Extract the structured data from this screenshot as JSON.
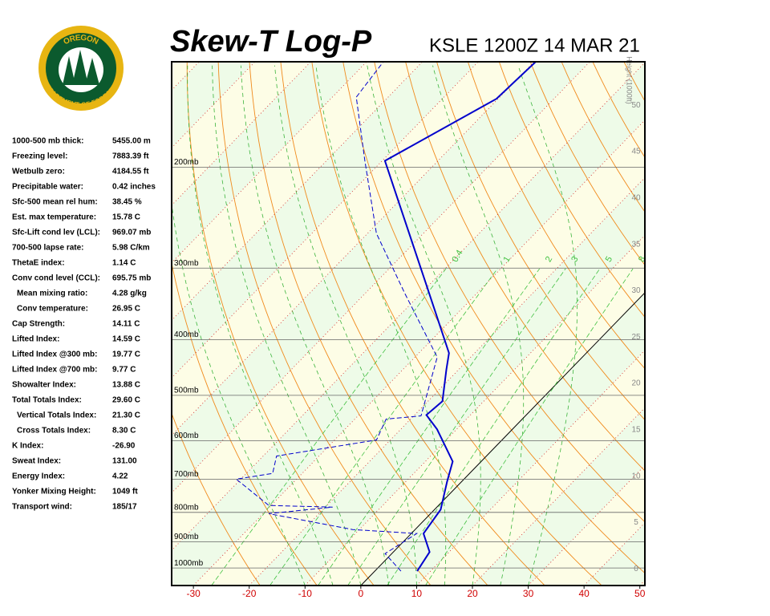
{
  "header": {
    "title": "Skew-T Log-P",
    "subtitle": "KSLE 1200Z 14 MAR 21"
  },
  "logo": {
    "top": "OREGON",
    "bottom": "DEPARTMENT OF FORESTRY"
  },
  "indices": [
    {
      "label": "1000-500 mb thick:",
      "value": "5455.00 m"
    },
    {
      "label": "Freezing level:",
      "value": "7883.39 ft"
    },
    {
      "label": "Wetbulb zero:",
      "value": "4184.55 ft"
    },
    {
      "label": "Precipitable water:",
      "value": "0.42 inches"
    },
    {
      "label": "Sfc-500 mean rel hum:",
      "value": "38.45 %"
    },
    {
      "label": "Est. max temperature:",
      "value": "15.78 C"
    },
    {
      "label": "Sfc-Lift cond lev (LCL):",
      "value": "969.07 mb"
    },
    {
      "label": "700-500 lapse rate:",
      "value": "5.98 C/km"
    },
    {
      "label": "ThetaE index:",
      "value": "1.14 C"
    },
    {
      "label": "Conv cond level (CCL):",
      "value": "695.75 mb"
    },
    {
      "label": "Mean mixing ratio:",
      "value": "4.28 g/kg",
      "indent": true
    },
    {
      "label": "Conv temperature:",
      "value": "26.95 C",
      "indent": true
    },
    {
      "label": "Cap Strength:",
      "value": "14.11 C"
    },
    {
      "label": "Lifted Index:",
      "value": "14.59 C"
    },
    {
      "label": "Lifted Index @300 mb:",
      "value": "19.77 C"
    },
    {
      "label": "Lifted Index @700 mb:",
      "value": "9.77 C"
    },
    {
      "label": "Showalter Index:",
      "value": "13.88 C"
    },
    {
      "label": "Total Totals Index:",
      "value": "29.60 C"
    },
    {
      "label": "Vertical Totals Index:",
      "value": "21.30 C",
      "indent": true
    },
    {
      "label": "Cross Totals Index:",
      "value": "8.30 C",
      "indent": true
    },
    {
      "label": "K Index:",
      "value": "-26.90"
    },
    {
      "label": "Sweat Index:",
      "value": "131.00"
    },
    {
      "label": "Energy Index:",
      "value": "4.22"
    },
    {
      "label": "Yonker Mixing Height:",
      "value": "1049 ft"
    },
    {
      "label": "Transport wind:",
      "value": "185/17"
    }
  ],
  "chart_data": {
    "type": "skew-t",
    "xlim": [
      -33.9,
      50.9
    ],
    "xticks": [
      -30,
      -20,
      -10,
      0,
      10,
      20,
      30,
      40,
      50
    ],
    "ylim": [
      1073,
      131
    ],
    "log_y": true,
    "yticks": [
      {
        "value": 1000,
        "label": "1000mb"
      },
      {
        "value": 900,
        "label": "900mb"
      },
      {
        "value": 800,
        "label": "800mb"
      },
      {
        "value": 700,
        "label": "700mb"
      },
      {
        "value": 600,
        "label": "600mb"
      },
      {
        "value": 500,
        "label": "500mb"
      },
      {
        "value": 400,
        "label": "400mb"
      },
      {
        "value": 300,
        "label": "300mb"
      },
      {
        "value": 200,
        "label": "200mb"
      }
    ],
    "height_label": "Height (1000ft)",
    "height_lim": [
      -1.8,
      54.7
    ],
    "height_ticks": [
      0,
      5,
      10,
      15,
      20,
      25,
      30,
      35,
      40,
      45,
      50
    ],
    "mixing_ratio_ticks": [
      0.4,
      1,
      2,
      3,
      5,
      8
    ],
    "temperature": {
      "color": "#0000cc",
      "pressure": [
        1013,
        938,
        871,
        791,
        707,
        652,
        573,
        541,
        512,
        451,
        422,
        316,
        195,
        152,
        131
      ],
      "values": [
        7.6,
        6.5,
        2.2,
        1.1,
        -2.6,
        -5.1,
        -13.5,
        -17.9,
        -17.4,
        -22.2,
        -24.6,
        -41.4,
        -69.5,
        -60.3,
        -59.7
      ]
    },
    "dewpoint": {
      "color": "#0000cc",
      "pressure": [
        1013,
        944,
        871,
        857,
        804,
        783,
        778,
        700,
        684,
        638,
        598,
        550,
        543,
        429,
        332,
        261,
        195,
        151,
        131
      ],
      "values": [
        4.7,
        -1.2,
        1.0,
        -11.2,
        -29.0,
        -18.7,
        -30.4,
        -40.8,
        -35.3,
        -37.6,
        -22.5,
        -24.4,
        -18.7,
        -26.0,
        -42.9,
        -58.4,
        -73.1,
        -85.7,
        -87.0
      ]
    }
  }
}
